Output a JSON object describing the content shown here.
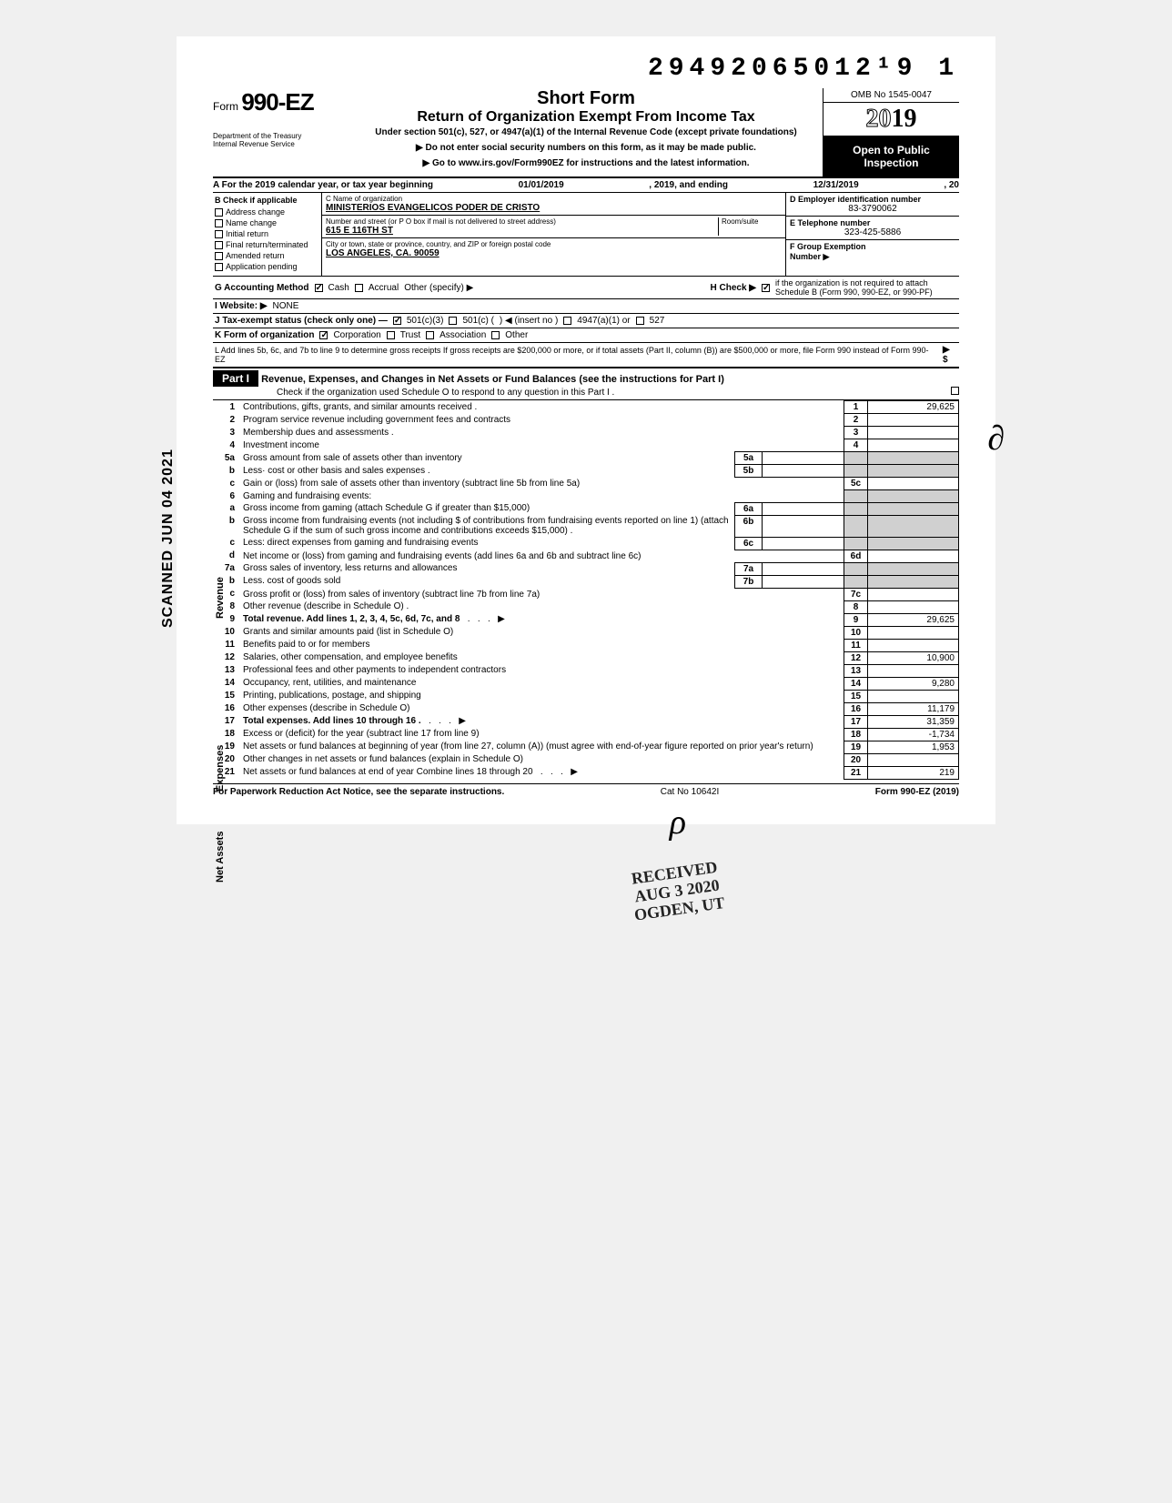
{
  "topId": "29492065012¹9  1",
  "scanned": "SCANNED JUN 04 2021",
  "formLabel": {
    "prefix": "Form",
    "num": "990-EZ"
  },
  "dept": "Department of the Treasury\nInternal Revenue Service",
  "title": {
    "short": "Short Form",
    "main": "Return of Organization Exempt From Income Tax",
    "sub": "Under section 501(c), 527, or 4947(a)(1) of the Internal Revenue Code (except private foundations)",
    "arrow1": "▶ Do not enter social security numbers on this form, as it may be made public.",
    "arrow2": "▶ Go to www.irs.gov/Form990EZ for instructions and the latest information."
  },
  "rightBlock": {
    "omb": "OMB No 1545-0047",
    "year_outline": "20",
    "year_bold": "19",
    "open": "Open to Public Inspection"
  },
  "rowA": {
    "label": "A  For the 2019 calendar year, or tax year beginning",
    "begin": "01/01/2019",
    "mid": ", 2019, and ending",
    "end": "12/31/2019",
    "suffix": ", 20"
  },
  "colB": {
    "hdr": "B  Check if applicable",
    "items": [
      "Address change",
      "Name change",
      "Initial return",
      "Final return/terminated",
      "Amended return",
      "Application pending"
    ]
  },
  "colCD": {
    "cHdr": "C  Name of organization",
    "cVal": "MINISTERIOS EVANGELICOS PODER DE CRISTO",
    "addrHdr": "Number and street (or P O  box if mail is not delivered to street address)",
    "roomHdr": "Room/suite",
    "addrVal": "615 E 116TH ST",
    "cityHdr": "City or town, state or province, country, and ZIP or foreign postal code",
    "cityVal": "LOS ANGELES, CA. 90059"
  },
  "colDE": {
    "dHdr": "D Employer identification number",
    "dVal": "83-3790062",
    "eHdr": "E  Telephone number",
    "eVal": "323-425-5886",
    "fHdr": "F  Group Exemption",
    "fHdr2": "Number  ▶"
  },
  "meta": {
    "g": "G  Accounting Method",
    "gCash": "Cash",
    "gAccrual": "Accrual",
    "gOther": "Other (specify) ▶",
    "h": "H  Check ▶",
    "hText": "if the organization is not required to attach Schedule B (Form 990, 990-EZ, or 990-PF)",
    "i": "I   Website: ▶",
    "iVal": "NONE",
    "j": "J  Tax-exempt status (check only one) —",
    "j1": "501(c)(3)",
    "j2": "501(c) (",
    "j3": ")  ◀ (insert no )",
    "j4": "4947(a)(1) or",
    "j5": "527",
    "k": "K  Form of organization",
    "k1": "Corporation",
    "k2": "Trust",
    "k3": "Association",
    "k4": "Other",
    "l": "L  Add lines 5b, 6c, and 7b to line 9 to determine gross receipts  If gross receipts are $200,000 or more, or if total assets (Part II, column (B)) are $500,000 or more, file Form 990 instead of Form 990-EZ",
    "lSym": "▶   $"
  },
  "part1": {
    "label": "Part I",
    "title": "Revenue, Expenses, and Changes in Net Assets or Fund Balances (see the instructions for Part I)",
    "check": "Check if the organization used Schedule O to respond to any question in this Part I ."
  },
  "sideLabels": {
    "rev": "Revenue",
    "exp": "Expenses",
    "net": "Net Assets"
  },
  "received": {
    "l1": "RECEIVED",
    "l2": "AUG 3 2020",
    "l3": "OGDEN, UT"
  },
  "lines": [
    {
      "n": "1",
      "d": "Contributions, gifts, grants, and similar amounts received .",
      "k": "1",
      "v": "29,625"
    },
    {
      "n": "2",
      "d": "Program service revenue including government fees and contracts",
      "k": "2",
      "v": ""
    },
    {
      "n": "3",
      "d": "Membership dues and assessments .",
      "k": "3",
      "v": ""
    },
    {
      "n": "4",
      "d": "Investment income",
      "k": "4",
      "v": ""
    },
    {
      "n": "5a",
      "d": "Gross amount from sale of assets other than inventory",
      "sk": "5a"
    },
    {
      "n": "b",
      "d": "Less· cost or other basis and sales expenses .",
      "sk": "5b"
    },
    {
      "n": "c",
      "d": "Gain or (loss) from sale of assets other than inventory (subtract line 5b from line 5a)",
      "k": "5c",
      "v": ""
    },
    {
      "n": "6",
      "d": "Gaming and fundraising events:"
    },
    {
      "n": "a",
      "d": "Gross income from gaming (attach Schedule G if greater than $15,000)",
      "sk": "6a"
    },
    {
      "n": "b",
      "d": "Gross income from fundraising events (not including  $                          of contributions from fundraising events reported on line 1) (attach Schedule G if the sum of such gross income and contributions exceeds $15,000) .",
      "sk": "6b"
    },
    {
      "n": "c",
      "d": "Less: direct expenses from gaming and fundraising events",
      "sk": "6c"
    },
    {
      "n": "d",
      "d": "Net income or (loss) from gaming and fundraising events (add lines 6a and 6b and subtract line 6c)",
      "k": "6d",
      "v": ""
    },
    {
      "n": "7a",
      "d": "Gross sales of inventory, less returns and allowances",
      "sk": "7a"
    },
    {
      "n": "b",
      "d": "Less. cost of goods sold",
      "sk": "7b"
    },
    {
      "n": "c",
      "d": "Gross profit or (loss) from sales of inventory (subtract line 7b from line 7a)",
      "k": "7c",
      "v": ""
    },
    {
      "n": "8",
      "d": "Other revenue (describe in Schedule O) .",
      "k": "8",
      "v": ""
    },
    {
      "n": "9",
      "d": "Total revenue. Add lines 1, 2, 3, 4, 5c, 6d, 7c, and 8",
      "k": "9",
      "v": "29,625",
      "bold": true,
      "arrow": true
    },
    {
      "n": "10",
      "d": "Grants and similar amounts paid (list in Schedule O)",
      "k": "10",
      "v": ""
    },
    {
      "n": "11",
      "d": "Benefits paid to or for members",
      "k": "11",
      "v": ""
    },
    {
      "n": "12",
      "d": "Salaries, other compensation, and employee benefits",
      "k": "12",
      "v": "10,900"
    },
    {
      "n": "13",
      "d": "Professional fees and other payments to independent contractors",
      "k": "13",
      "v": ""
    },
    {
      "n": "14",
      "d": "Occupancy, rent, utilities, and maintenance",
      "k": "14",
      "v": "9,280"
    },
    {
      "n": "15",
      "d": "Printing, publications, postage, and shipping",
      "k": "15",
      "v": ""
    },
    {
      "n": "16",
      "d": "Other expenses (describe in Schedule O)",
      "k": "16",
      "v": "11,179"
    },
    {
      "n": "17",
      "d": "Total expenses. Add lines 10 through 16 .",
      "k": "17",
      "v": "31,359",
      "bold": true,
      "arrow": true
    },
    {
      "n": "18",
      "d": "Excess or (deficit) for the year (subtract line 17 from line 9)",
      "k": "18",
      "v": "-1,734"
    },
    {
      "n": "19",
      "d": "Net assets or fund balances at beginning of year (from line 27, column (A)) (must agree with end-of-year figure reported on prior year's return)",
      "k": "19",
      "v": "1,953"
    },
    {
      "n": "20",
      "d": "Other changes in net assets or fund balances (explain in Schedule O)",
      "k": "20",
      "v": ""
    },
    {
      "n": "21",
      "d": "Net assets or fund balances at end of year  Combine lines 18 through 20",
      "k": "21",
      "v": "219",
      "arrow": true
    }
  ],
  "footer": {
    "left": "For Paperwork Reduction Act Notice, see the separate instructions.",
    "mid": "Cat  No  10642I",
    "right": "Form 990-EZ (2019)"
  }
}
